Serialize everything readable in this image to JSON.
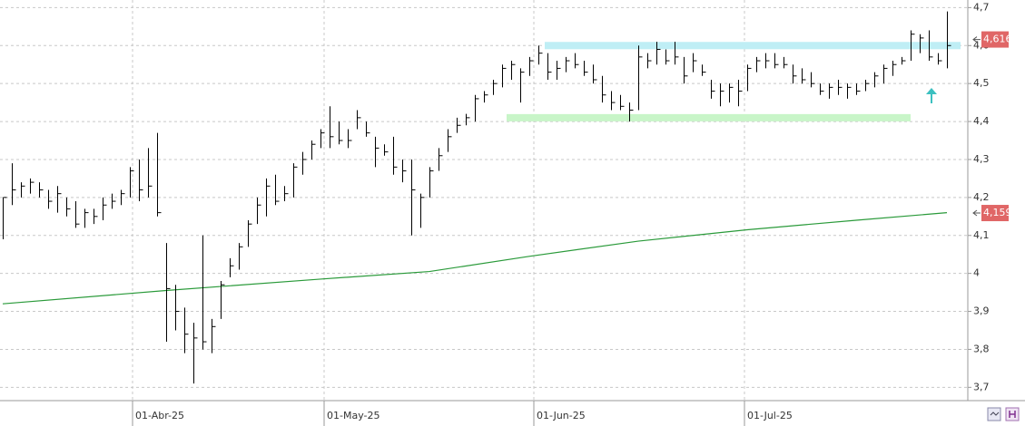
{
  "chart_data": {
    "type": "ohlc",
    "high": [
      4.2,
      4.29,
      4.24,
      4.25,
      4.24,
      4.22,
      4.23,
      4.2,
      4.19,
      4.17,
      4.17,
      4.2,
      4.21,
      4.22,
      4.28,
      4.3,
      4.33,
      4.37,
      4.08,
      3.97,
      3.91,
      3.87,
      4.1,
      3.88,
      3.98,
      4.04,
      4.08,
      4.14,
      4.2,
      4.25,
      4.26,
      4.23,
      4.29,
      4.32,
      4.35,
      4.38,
      4.44,
      4.4,
      4.38,
      4.43,
      4.4,
      4.36,
      4.34,
      4.36,
      4.3,
      4.3,
      4.21,
      4.28,
      4.33,
      4.38,
      4.41,
      4.42,
      4.47,
      4.48,
      4.51,
      4.55,
      4.56,
      4.54,
      4.57,
      4.6,
      4.58,
      4.56,
      4.57,
      4.58,
      4.56,
      4.55,
      4.52,
      4.48,
      4.47,
      4.45,
      4.6,
      4.58,
      4.61,
      4.59,
      4.61,
      4.57,
      4.58,
      4.55,
      4.51,
      4.5,
      4.5,
      4.51,
      4.55,
      4.57,
      4.58,
      4.58,
      4.57,
      4.55,
      4.54,
      4.53,
      4.5,
      4.5,
      4.51,
      4.5,
      4.5,
      4.51,
      4.53,
      4.55,
      4.56,
      4.57,
      4.64,
      4.63,
      4.64,
      4.58,
      4.69
    ],
    "low": [
      4.09,
      4.18,
      4.2,
      4.21,
      4.2,
      4.17,
      4.16,
      4.15,
      4.12,
      4.12,
      4.13,
      4.14,
      4.17,
      4.18,
      4.2,
      4.19,
      4.2,
      4.15,
      3.82,
      3.85,
      3.79,
      3.71,
      3.8,
      3.79,
      3.88,
      3.99,
      4.01,
      4.07,
      4.13,
      4.15,
      4.18,
      4.19,
      4.2,
      4.26,
      4.3,
      4.33,
      4.33,
      4.34,
      4.33,
      4.38,
      4.36,
      4.28,
      4.31,
      4.26,
      4.24,
      4.1,
      4.12,
      4.2,
      4.27,
      4.32,
      4.37,
      4.39,
      4.4,
      4.45,
      4.47,
      4.49,
      4.51,
      4.45,
      4.52,
      4.55,
      4.51,
      4.51,
      4.53,
      4.54,
      4.52,
      4.5,
      4.45,
      4.43,
      4.43,
      4.4,
      4.43,
      4.54,
      4.55,
      4.55,
      4.55,
      4.5,
      4.53,
      4.52,
      4.46,
      4.44,
      4.45,
      4.44,
      4.48,
      4.53,
      4.54,
      4.54,
      4.54,
      4.5,
      4.5,
      4.49,
      4.47,
      4.46,
      4.47,
      4.46,
      4.47,
      4.48,
      4.49,
      4.5,
      4.52,
      4.55,
      4.56,
      4.58,
      4.56,
      4.55,
      4.54
    ],
    "close": [
      4.2,
      4.22,
      4.23,
      4.24,
      4.22,
      4.19,
      4.21,
      4.17,
      4.13,
      4.16,
      4.15,
      4.18,
      4.19,
      4.21,
      4.27,
      4.22,
      4.23,
      4.16,
      3.96,
      3.9,
      3.84,
      3.83,
      3.82,
      3.86,
      3.97,
      4.02,
      4.07,
      4.13,
      4.18,
      4.23,
      4.19,
      4.21,
      4.28,
      4.3,
      4.34,
      4.37,
      4.36,
      4.35,
      4.35,
      4.41,
      4.37,
      4.33,
      4.32,
      4.28,
      4.27,
      4.22,
      4.2,
      4.27,
      4.31,
      4.36,
      4.39,
      4.41,
      4.46,
      4.47,
      4.5,
      4.54,
      4.55,
      4.53,
      4.56,
      4.58,
      4.53,
      4.54,
      4.56,
      4.55,
      4.53,
      4.51,
      4.47,
      4.45,
      4.44,
      4.43,
      4.57,
      4.56,
      4.59,
      4.56,
      4.57,
      4.52,
      4.56,
      4.53,
      4.48,
      4.48,
      4.49,
      4.48,
      4.54,
      4.56,
      4.56,
      4.55,
      4.55,
      4.52,
      4.51,
      4.5,
      4.48,
      4.49,
      4.49,
      4.49,
      4.48,
      4.5,
      4.52,
      4.54,
      4.55,
      4.56,
      4.63,
      4.62,
      4.57,
      4.56,
      4.6
    ],
    "bar_color": "#000000",
    "moving_average": {
      "color": "#2a9a3a",
      "x": [
        0,
        18,
        35,
        47,
        58,
        70,
        82,
        94,
        104
      ],
      "values": [
        3.92,
        3.955,
        3.985,
        4.005,
        4.045,
        4.085,
        4.115,
        4.14,
        4.16
      ]
    },
    "bands": [
      {
        "y": 4.6,
        "x": [
          59.7,
          105.5
        ],
        "color": "#bfeef5"
      },
      {
        "y": 4.41,
        "x": [
          55.5,
          100
        ],
        "color": "#c8f5c8"
      }
    ],
    "price_labels": [
      {
        "value": 4.616,
        "label": "4,616",
        "color": "#e06666"
      },
      {
        "value": 4.159,
        "label": "4,159",
        "color": "#e06666"
      }
    ],
    "xlim": [
      -0.3,
      106.2
    ],
    "xticks": [
      {
        "value": 14.3,
        "label": "01-Abr-25"
      },
      {
        "value": 35.4,
        "label": "01-May-25"
      },
      {
        "value": 58.5,
        "label": "01-Jun-25"
      },
      {
        "value": 81.7,
        "label": "01-Jul-25"
      }
    ],
    "ylim": [
      3.665,
      4.72
    ],
    "yticks": [
      {
        "value": 3.7,
        "label": "3,7"
      },
      {
        "value": 3.8,
        "label": "3,8"
      },
      {
        "value": 3.9,
        "label": "3,9"
      },
      4,
      {
        "value": 4.1,
        "label": "4,1"
      },
      {
        "value": 4.2,
        "label": "4,2"
      },
      {
        "value": 4.3,
        "label": "4,3"
      },
      {
        "value": 4.4,
        "label": "4,4"
      },
      {
        "value": 4.5,
        "label": "4,5"
      },
      {
        "value": 4.6,
        "label": "4,6"
      },
      {
        "value": 4.7,
        "label": "4,7"
      }
    ],
    "grid": true
  }
}
